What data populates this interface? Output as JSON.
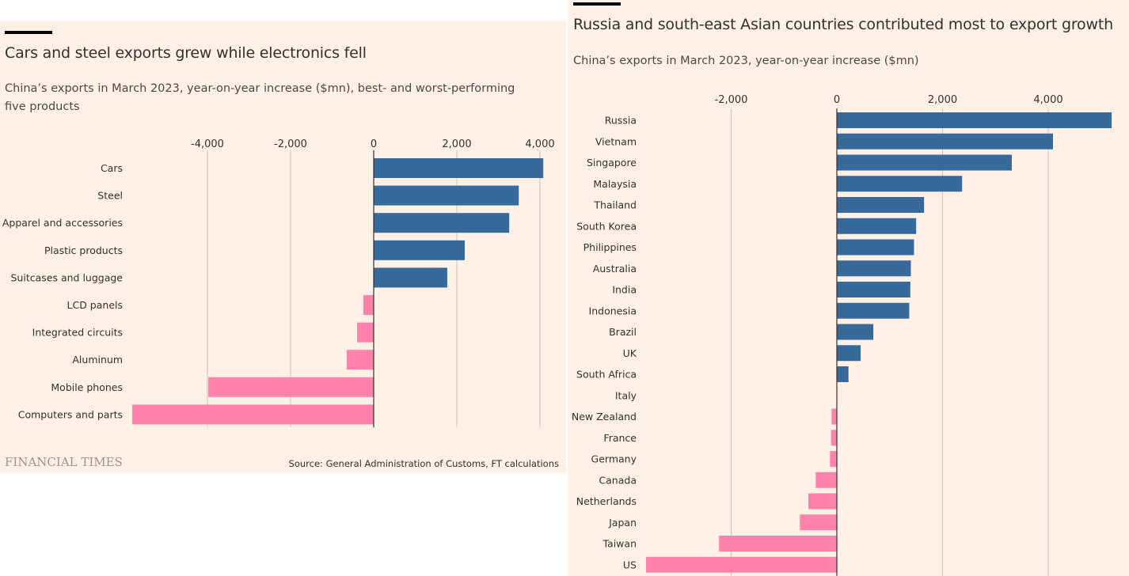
{
  "colors": {
    "background": "#fff1e5",
    "positive": "#336699",
    "negative": "#ff7faa",
    "gridline": "#ccc1b7",
    "axis": "#33302e",
    "text": "#33302e"
  },
  "left": {
    "title": "Cars and steel exports grew while electronics fell",
    "subtitle": "China’s exports in March 2023, year-on-year increase ($mn), best- and worst-performing five products",
    "logo": "FINANCIAL TIMES",
    "source": "Source: General Administration of Customs, FT calculations"
  },
  "right": {
    "title": "Russia and south-east Asian countries contributed most to export growth",
    "subtitle": "China’s exports in March 2023, year-on-year increase ($mn)"
  },
  "chart_data": [
    {
      "type": "bar",
      "orientation": "horizontal",
      "title": "Cars and steel exports grew while electronics fell",
      "subtitle": "China’s exports in March 2023, year-on-year increase ($mn), best- and worst-performing five products",
      "xlabel": "",
      "ylabel": "",
      "xlim": [
        -6000,
        4200
      ],
      "xticks": [
        -4000,
        -2000,
        0,
        2000,
        4000
      ],
      "xtick_labels": [
        "-4,000",
        "-2,000",
        "0",
        "2,000",
        "4,000"
      ],
      "grid": true,
      "categories": [
        "Cars",
        "Steel",
        "Apparel and accessories",
        "Plastic products",
        "Suitcases and luggage",
        "LCD panels",
        "Integrated circuits",
        "Aluminum",
        "Mobile phones",
        "Computers and parts"
      ],
      "values": [
        4080,
        3490,
        3260,
        2190,
        1770,
        -250,
        -400,
        -650,
        -3980,
        -5810
      ],
      "source": "Source: General Administration of Customs, FT calculations"
    },
    {
      "type": "bar",
      "orientation": "horizontal",
      "title": "Russia and south-east Asian countries contributed most to export growth",
      "subtitle": "China’s exports in March 2023, year-on-year increase ($mn)",
      "xlabel": "",
      "ylabel": "",
      "xlim": [
        -3700,
        5300
      ],
      "xticks": [
        -2000,
        0,
        2000,
        4000
      ],
      "xtick_labels": [
        "-2,000",
        "0",
        "2,000",
        "4,000"
      ],
      "grid": true,
      "categories": [
        "Russia",
        "Vietnam",
        "Singapore",
        "Malaysia",
        "Thailand",
        "South Korea",
        "Philippines",
        "Australia",
        "India",
        "Indonesia",
        "Brazil",
        "UK",
        "South Africa",
        "Italy",
        "New Zealand",
        "France",
        "Germany",
        "Canada",
        "Netherlands",
        "Japan",
        "Taiwan",
        "US"
      ],
      "values": [
        5200,
        4090,
        3310,
        2370,
        1650,
        1500,
        1460,
        1400,
        1390,
        1370,
        690,
        450,
        220,
        0,
        -100,
        -110,
        -130,
        -400,
        -540,
        -700,
        -2230,
        -3610
      ]
    }
  ]
}
